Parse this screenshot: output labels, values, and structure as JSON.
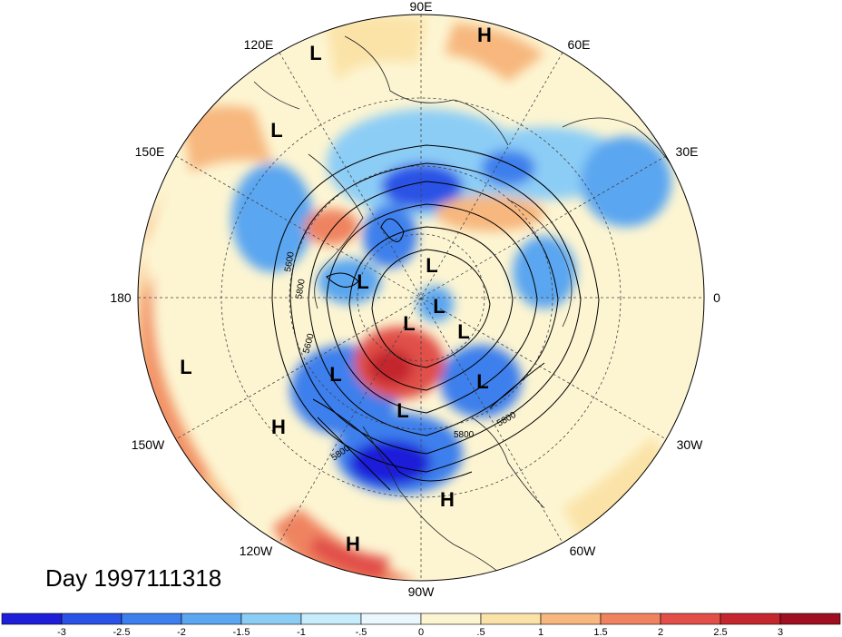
{
  "title": "Day 1997111318",
  "longitude_labels": [
    "90E",
    "60E",
    "30E",
    "0",
    "30W",
    "60W",
    "90W",
    "120W",
    "150W",
    "180",
    "150E",
    "120E"
  ],
  "pressure_systems": [
    {
      "type": "H",
      "label": "H"
    },
    {
      "type": "L",
      "label": "L"
    },
    {
      "type": "L",
      "label": "L"
    },
    {
      "type": "L",
      "label": "L"
    },
    {
      "type": "L",
      "label": "L"
    },
    {
      "type": "L",
      "label": "L"
    },
    {
      "type": "L",
      "label": "L"
    },
    {
      "type": "L",
      "label": "L"
    },
    {
      "type": "L",
      "label": "L"
    },
    {
      "type": "L",
      "label": "L"
    },
    {
      "type": "L",
      "label": "L"
    },
    {
      "type": "L",
      "label": "L"
    },
    {
      "type": "H",
      "label": "H"
    },
    {
      "type": "H",
      "label": "H"
    },
    {
      "type": "H",
      "label": "H"
    }
  ],
  "contour_labels": [
    "5800",
    "5600",
    "5800",
    "5800",
    "5800",
    "5600"
  ],
  "colorbar": {
    "labels": [
      "-3",
      "-2.5",
      "-2",
      "-1.5",
      "-1",
      "-.5",
      "0",
      ".5",
      "1",
      "1.5",
      "2",
      "2.5",
      "3"
    ],
    "colors": [
      "#1f1fd9",
      "#2a52e6",
      "#3d7fec",
      "#5aa6f0",
      "#8ccdf6",
      "#c7ecfb",
      "#eaf8fd",
      "#fdf5d2",
      "#fbe3a8",
      "#f7b77e",
      "#ef8360",
      "#e14f48",
      "#c4272d",
      "#9e0f1f"
    ]
  },
  "colors": {
    "ocean_warm": "#fbe3a8",
    "land_cold": "#3d7fec",
    "anomaly_hot": "#c4272d"
  }
}
